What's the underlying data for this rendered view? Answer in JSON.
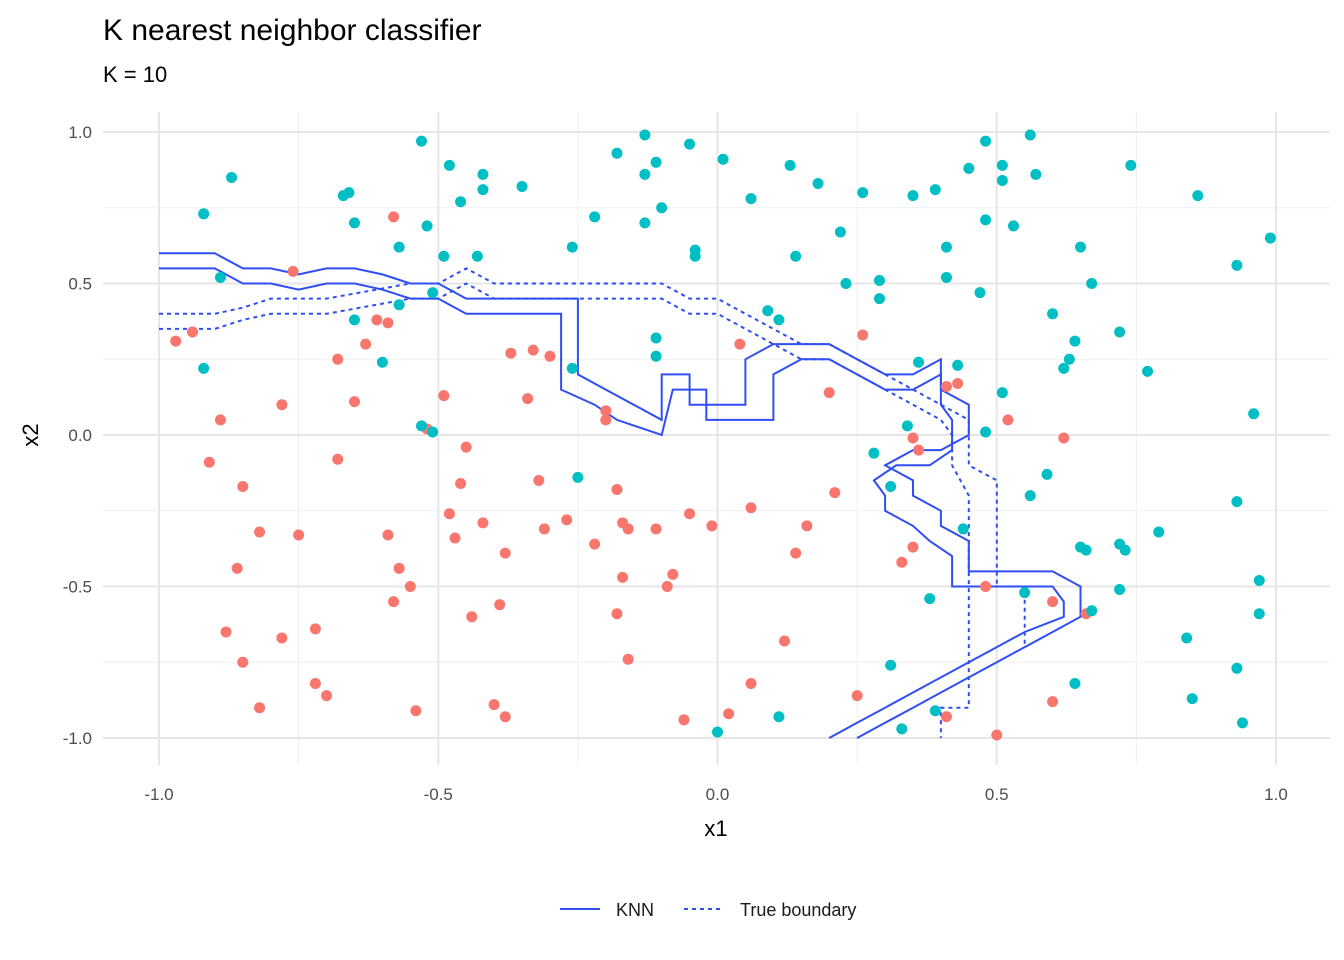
{
  "colors": {
    "class_a": "#F8766D",
    "class_b": "#00BFC4",
    "boundary": "#2F4EF4",
    "grid_major": "#E6E6E6",
    "grid_minor": "#F0F0F0"
  },
  "chart_data": {
    "type": "scatter",
    "title": "K nearest neighbor classifier",
    "subtitle": "K = 10",
    "xlabel": "x1",
    "ylabel": "x2",
    "xlim": [
      -1.1,
      1.1
    ],
    "ylim": [
      -1.08,
      1.08
    ],
    "grid": true,
    "legend_position": "bottom",
    "x_ticks": [
      -1.0,
      -0.5,
      0.0,
      0.5,
      1.0
    ],
    "x_tick_labels": [
      "-1.0",
      "-0.5",
      "0.0",
      "0.5",
      "1.0"
    ],
    "y_ticks": [
      1.0,
      0.5,
      0.0,
      -0.5,
      -1.0
    ],
    "y_tick_labels": [
      "1.0",
      "0.5",
      "0.0",
      "-0.5",
      "-1.0"
    ],
    "legend": [
      {
        "label": "KNN",
        "dash": "solid"
      },
      {
        "label": "True boundary",
        "dash": "dotted"
      }
    ],
    "points_class_a": [
      [
        -0.97,
        0.31
      ],
      [
        -0.94,
        0.34
      ],
      [
        -0.89,
        0.05
      ],
      [
        -0.91,
        -0.09
      ],
      [
        -0.85,
        -0.17
      ],
      [
        -0.82,
        -0.32
      ],
      [
        -0.86,
        -0.44
      ],
      [
        -0.88,
        -0.65
      ],
      [
        -0.85,
        -0.75
      ],
      [
        -0.82,
        -0.9
      ],
      [
        -0.78,
        0.1
      ],
      [
        -0.76,
        0.54
      ],
      [
        -0.75,
        -0.33
      ],
      [
        -0.78,
        -0.67
      ],
      [
        -0.72,
        -0.64
      ],
      [
        -0.72,
        -0.82
      ],
      [
        -0.7,
        -0.86
      ],
      [
        -0.68,
        0.25
      ],
      [
        -0.68,
        -0.08
      ],
      [
        -0.65,
        0.11
      ],
      [
        -0.63,
        0.3
      ],
      [
        -0.61,
        0.38
      ],
      [
        -0.58,
        0.72
      ],
      [
        -0.59,
        0.37
      ],
      [
        -0.59,
        -0.33
      ],
      [
        -0.57,
        -0.44
      ],
      [
        -0.55,
        -0.5
      ],
      [
        -0.58,
        -0.55
      ],
      [
        -0.54,
        -0.91
      ],
      [
        -0.52,
        0.02
      ],
      [
        -0.49,
        0.13
      ],
      [
        -0.48,
        -0.26
      ],
      [
        -0.47,
        -0.34
      ],
      [
        -0.46,
        -0.16
      ],
      [
        -0.45,
        -0.04
      ],
      [
        -0.44,
        -0.6
      ],
      [
        -0.42,
        -0.29
      ],
      [
        -0.4,
        -0.89
      ],
      [
        -0.38,
        -0.39
      ],
      [
        -0.39,
        -0.56
      ],
      [
        -0.38,
        -0.93
      ],
      [
        -0.37,
        0.27
      ],
      [
        -0.34,
        0.12
      ],
      [
        -0.33,
        0.28
      ],
      [
        -0.32,
        -0.15
      ],
      [
        -0.3,
        0.26
      ],
      [
        -0.31,
        -0.31
      ],
      [
        -0.27,
        -0.28
      ],
      [
        -0.22,
        -0.36
      ],
      [
        -0.2,
        0.08
      ],
      [
        -0.2,
        0.05
      ],
      [
        -0.18,
        -0.18
      ],
      [
        -0.17,
        -0.29
      ],
      [
        -0.16,
        -0.31
      ],
      [
        -0.17,
        -0.47
      ],
      [
        -0.16,
        -0.74
      ],
      [
        -0.18,
        -0.59
      ],
      [
        -0.11,
        -0.31
      ],
      [
        -0.08,
        -0.46
      ],
      [
        -0.09,
        -0.5
      ],
      [
        -0.05,
        -0.26
      ],
      [
        -0.06,
        -0.94
      ],
      [
        -0.01,
        -0.3
      ],
      [
        0.02,
        -0.92
      ],
      [
        0.04,
        0.3
      ],
      [
        0.06,
        -0.24
      ],
      [
        0.06,
        -0.82
      ],
      [
        0.12,
        -0.68
      ],
      [
        0.14,
        -0.39
      ],
      [
        0.16,
        -0.3
      ],
      [
        0.21,
        -0.19
      ],
      [
        0.2,
        0.14
      ],
      [
        0.26,
        0.33
      ],
      [
        0.25,
        -0.86
      ],
      [
        0.33,
        -0.42
      ],
      [
        0.35,
        -0.37
      ],
      [
        0.35,
        -0.01
      ],
      [
        0.36,
        -0.05
      ],
      [
        0.41,
        0.16
      ],
      [
        0.43,
        0.17
      ],
      [
        0.41,
        -0.93
      ],
      [
        0.48,
        -0.5
      ],
      [
        0.5,
        -0.99
      ],
      [
        0.52,
        0.05
      ],
      [
        0.6,
        -0.55
      ],
      [
        0.6,
        -0.88
      ],
      [
        0.62,
        -0.01
      ],
      [
        0.66,
        -0.59
      ]
    ],
    "points_class_b": [
      [
        -0.92,
        0.73
      ],
      [
        -0.87,
        0.85
      ],
      [
        -0.89,
        0.52
      ],
      [
        -0.92,
        0.22
      ],
      [
        -0.67,
        0.79
      ],
      [
        -0.66,
        0.8
      ],
      [
        -0.65,
        0.7
      ],
      [
        -0.65,
        0.38
      ],
      [
        -0.6,
        0.24
      ],
      [
        -0.57,
        0.62
      ],
      [
        -0.57,
        0.43
      ],
      [
        -0.53,
        0.97
      ],
      [
        -0.52,
        0.69
      ],
      [
        -0.51,
        0.47
      ],
      [
        -0.49,
        0.59
      ],
      [
        -0.48,
        0.89
      ],
      [
        -0.46,
        0.77
      ],
      [
        -0.42,
        0.86
      ],
      [
        -0.42,
        0.81
      ],
      [
        -0.43,
        0.59
      ],
      [
        -0.35,
        0.82
      ],
      [
        -0.53,
        0.03
      ],
      [
        -0.51,
        0.01
      ],
      [
        -0.26,
        0.22
      ],
      [
        -0.26,
        0.62
      ],
      [
        -0.25,
        -0.14
      ],
      [
        -0.22,
        0.72
      ],
      [
        -0.18,
        0.93
      ],
      [
        -0.13,
        0.99
      ],
      [
        -0.13,
        0.86
      ],
      [
        -0.11,
        0.9
      ],
      [
        -0.13,
        0.7
      ],
      [
        -0.1,
        0.75
      ],
      [
        -0.11,
        0.32
      ],
      [
        -0.11,
        0.26
      ],
      [
        -0.05,
        0.96
      ],
      [
        -0.04,
        0.61
      ],
      [
        -0.04,
        0.59
      ],
      [
        0.01,
        0.91
      ],
      [
        0.06,
        0.78
      ],
      [
        0.09,
        0.41
      ],
      [
        0.11,
        0.38
      ],
      [
        0.13,
        0.89
      ],
      [
        0.14,
        0.59
      ],
      [
        0.18,
        0.83
      ],
      [
        0.22,
        0.67
      ],
      [
        0.23,
        0.5
      ],
      [
        0.26,
        0.8
      ],
      [
        0.29,
        0.51
      ],
      [
        0.29,
        0.45
      ],
      [
        0.35,
        0.79
      ],
      [
        0.36,
        0.24
      ],
      [
        0.34,
        0.03
      ],
      [
        0.28,
        -0.06
      ],
      [
        0.31,
        -0.17
      ],
      [
        0.31,
        -0.76
      ],
      [
        0.33,
        -0.97
      ],
      [
        0.38,
        -0.54
      ],
      [
        0.39,
        -0.91
      ],
      [
        0.39,
        0.81
      ],
      [
        0.41,
        0.52
      ],
      [
        0.41,
        0.62
      ],
      [
        0.43,
        0.23
      ],
      [
        0.44,
        -0.31
      ],
      [
        0.45,
        0.88
      ],
      [
        0.48,
        0.97
      ],
      [
        0.48,
        0.71
      ],
      [
        0.48,
        0.01
      ],
      [
        0.47,
        0.47
      ],
      [
        0.51,
        0.84
      ],
      [
        0.51,
        0.89
      ],
      [
        0.51,
        0.14
      ],
      [
        0.56,
        0.99
      ],
      [
        0.57,
        0.86
      ],
      [
        0.53,
        0.69
      ],
      [
        0.55,
        -0.52
      ],
      [
        0.56,
        -0.2
      ],
      [
        0.59,
        -0.13
      ],
      [
        0.6,
        0.4
      ],
      [
        0.62,
        0.22
      ],
      [
        0.63,
        0.25
      ],
      [
        0.64,
        0.31
      ],
      [
        0.64,
        -0.82
      ],
      [
        0.65,
        -0.37
      ],
      [
        0.66,
        -0.38
      ],
      [
        0.65,
        0.62
      ],
      [
        0.67,
        0.5
      ],
      [
        0.67,
        -0.58
      ],
      [
        0.72,
        0.34
      ],
      [
        0.72,
        -0.36
      ],
      [
        0.73,
        -0.38
      ],
      [
        0.72,
        -0.51
      ],
      [
        0.74,
        0.89
      ],
      [
        0.77,
        0.21
      ],
      [
        0.79,
        -0.32
      ],
      [
        0.84,
        -0.67
      ],
      [
        0.85,
        -0.87
      ],
      [
        0.86,
        0.79
      ],
      [
        0.93,
        0.56
      ],
      [
        0.93,
        -0.22
      ],
      [
        0.93,
        -0.77
      ],
      [
        0.94,
        -0.95
      ],
      [
        0.96,
        0.07
      ],
      [
        0.97,
        -0.48
      ],
      [
        0.97,
        -0.59
      ],
      [
        0.99,
        0.65
      ],
      [
        -0.0,
        -0.98
      ],
      [
        0.11,
        -0.93
      ]
    ],
    "knn_paths": [
      [
        [
          -1.0,
          0.6
        ],
        [
          -0.9,
          0.6
        ],
        [
          -0.85,
          0.55
        ],
        [
          -0.8,
          0.55
        ],
        [
          -0.75,
          0.53
        ],
        [
          -0.7,
          0.55
        ],
        [
          -0.65,
          0.55
        ],
        [
          -0.6,
          0.53
        ],
        [
          -0.55,
          0.5
        ],
        [
          -0.5,
          0.5
        ],
        [
          -0.45,
          0.45
        ],
        [
          -0.4,
          0.45
        ],
        [
          -0.35,
          0.45
        ],
        [
          -0.3,
          0.45
        ],
        [
          -0.25,
          0.45
        ],
        [
          -0.25,
          0.2
        ],
        [
          -0.2,
          0.15
        ],
        [
          -0.15,
          0.1
        ],
        [
          -0.1,
          0.05
        ],
        [
          -0.1,
          0.2
        ],
        [
          -0.05,
          0.2
        ],
        [
          -0.05,
          0.1
        ],
        [
          0.0,
          0.1
        ],
        [
          0.05,
          0.1
        ],
        [
          0.05,
          0.25
        ],
        [
          0.1,
          0.3
        ],
        [
          0.15,
          0.3
        ],
        [
          0.2,
          0.3
        ],
        [
          0.25,
          0.25
        ],
        [
          0.3,
          0.2
        ],
        [
          0.35,
          0.2
        ],
        [
          0.4,
          0.25
        ],
        [
          0.4,
          0.15
        ],
        [
          0.45,
          0.1
        ],
        [
          0.45,
          0.0
        ],
        [
          0.4,
          -0.05
        ],
        [
          0.35,
          -0.05
        ],
        [
          0.3,
          -0.1
        ],
        [
          0.35,
          -0.15
        ],
        [
          0.35,
          -0.2
        ],
        [
          0.4,
          -0.25
        ],
        [
          0.4,
          -0.3
        ],
        [
          0.45,
          -0.35
        ],
        [
          0.45,
          -0.45
        ],
        [
          0.5,
          -0.45
        ],
        [
          0.55,
          -0.45
        ],
        [
          0.6,
          -0.45
        ],
        [
          0.65,
          -0.5
        ],
        [
          0.65,
          -0.6
        ],
        [
          0.6,
          -0.65
        ],
        [
          0.55,
          -0.7
        ],
        [
          0.5,
          -0.75
        ],
        [
          0.45,
          -0.8
        ],
        [
          0.4,
          -0.85
        ],
        [
          0.35,
          -0.9
        ],
        [
          0.3,
          -0.95
        ],
        [
          0.25,
          -1.0
        ]
      ],
      [
        [
          -1.0,
          0.55
        ],
        [
          -0.9,
          0.55
        ],
        [
          -0.85,
          0.5
        ],
        [
          -0.8,
          0.5
        ],
        [
          -0.75,
          0.48
        ],
        [
          -0.7,
          0.5
        ],
        [
          -0.65,
          0.5
        ],
        [
          -0.6,
          0.48
        ],
        [
          -0.55,
          0.45
        ],
        [
          -0.5,
          0.45
        ],
        [
          -0.45,
          0.4
        ],
        [
          -0.35,
          0.4
        ],
        [
          -0.3,
          0.4
        ],
        [
          -0.28,
          0.4
        ],
        [
          -0.28,
          0.15
        ],
        [
          -0.22,
          0.1
        ],
        [
          -0.18,
          0.05
        ],
        [
          -0.1,
          0.0
        ],
        [
          -0.1,
          0.0
        ],
        [
          -0.08,
          0.15
        ],
        [
          -0.02,
          0.15
        ],
        [
          -0.02,
          0.05
        ],
        [
          0.08,
          0.05
        ],
        [
          0.1,
          0.05
        ],
        [
          0.1,
          0.2
        ],
        [
          0.15,
          0.25
        ],
        [
          0.2,
          0.25
        ],
        [
          0.25,
          0.2
        ],
        [
          0.3,
          0.15
        ],
        [
          0.35,
          0.15
        ],
        [
          0.4,
          0.2
        ],
        [
          0.4,
          0.1
        ],
        [
          0.42,
          0.05
        ],
        [
          0.42,
          -0.05
        ],
        [
          0.38,
          -0.1
        ],
        [
          0.32,
          -0.1
        ],
        [
          0.28,
          -0.15
        ],
        [
          0.3,
          -0.2
        ],
        [
          0.3,
          -0.25
        ],
        [
          0.35,
          -0.3
        ],
        [
          0.38,
          -0.35
        ],
        [
          0.42,
          -0.4
        ],
        [
          0.42,
          -0.5
        ],
        [
          0.5,
          -0.5
        ],
        [
          0.6,
          -0.5
        ],
        [
          0.62,
          -0.55
        ],
        [
          0.62,
          -0.6
        ],
        [
          0.55,
          -0.65
        ],
        [
          0.5,
          -0.7
        ],
        [
          0.45,
          -0.75
        ],
        [
          0.4,
          -0.8
        ],
        [
          0.35,
          -0.85
        ],
        [
          0.3,
          -0.9
        ],
        [
          0.25,
          -0.95
        ],
        [
          0.2,
          -1.0
        ]
      ]
    ],
    "true_boundary_paths": [
      [
        [
          -1.0,
          0.4
        ],
        [
          -0.9,
          0.4
        ],
        [
          -0.85,
          0.42
        ],
        [
          -0.8,
          0.45
        ],
        [
          -0.7,
          0.45
        ],
        [
          -0.55,
          0.5
        ],
        [
          -0.5,
          0.5
        ],
        [
          -0.45,
          0.55
        ],
        [
          -0.4,
          0.5
        ],
        [
          -0.3,
          0.5
        ],
        [
          -0.2,
          0.5
        ],
        [
          -0.1,
          0.5
        ],
        [
          -0.05,
          0.45
        ],
        [
          0.0,
          0.45
        ],
        [
          0.05,
          0.4
        ],
        [
          0.1,
          0.35
        ],
        [
          0.15,
          0.3
        ],
        [
          0.2,
          0.3
        ],
        [
          0.25,
          0.25
        ],
        [
          0.3,
          0.2
        ],
        [
          0.35,
          0.15
        ],
        [
          0.4,
          0.1
        ],
        [
          0.45,
          0.05
        ],
        [
          0.45,
          -0.1
        ],
        [
          0.5,
          -0.15
        ],
        [
          0.5,
          -0.5
        ],
        [
          0.55,
          -0.5
        ],
        [
          0.55,
          -0.7
        ]
      ],
      [
        [
          -1.0,
          0.35
        ],
        [
          -0.9,
          0.35
        ],
        [
          -0.85,
          0.38
        ],
        [
          -0.8,
          0.4
        ],
        [
          -0.7,
          0.4
        ],
        [
          -0.55,
          0.45
        ],
        [
          -0.5,
          0.45
        ],
        [
          -0.45,
          0.5
        ],
        [
          -0.4,
          0.45
        ],
        [
          -0.3,
          0.45
        ],
        [
          -0.2,
          0.45
        ],
        [
          -0.1,
          0.45
        ],
        [
          -0.05,
          0.4
        ],
        [
          0.0,
          0.4
        ],
        [
          0.05,
          0.35
        ],
        [
          0.1,
          0.3
        ],
        [
          0.15,
          0.25
        ],
        [
          0.2,
          0.25
        ],
        [
          0.25,
          0.2
        ],
        [
          0.3,
          0.15
        ],
        [
          0.35,
          0.1
        ],
        [
          0.4,
          0.05
        ],
        [
          0.42,
          0.0
        ],
        [
          0.42,
          -0.1
        ],
        [
          0.45,
          -0.2
        ],
        [
          0.45,
          -0.45
        ],
        [
          0.45,
          -0.55
        ],
        [
          0.45,
          -0.9
        ],
        [
          0.4,
          -0.9
        ],
        [
          0.4,
          -1.0
        ]
      ]
    ]
  }
}
